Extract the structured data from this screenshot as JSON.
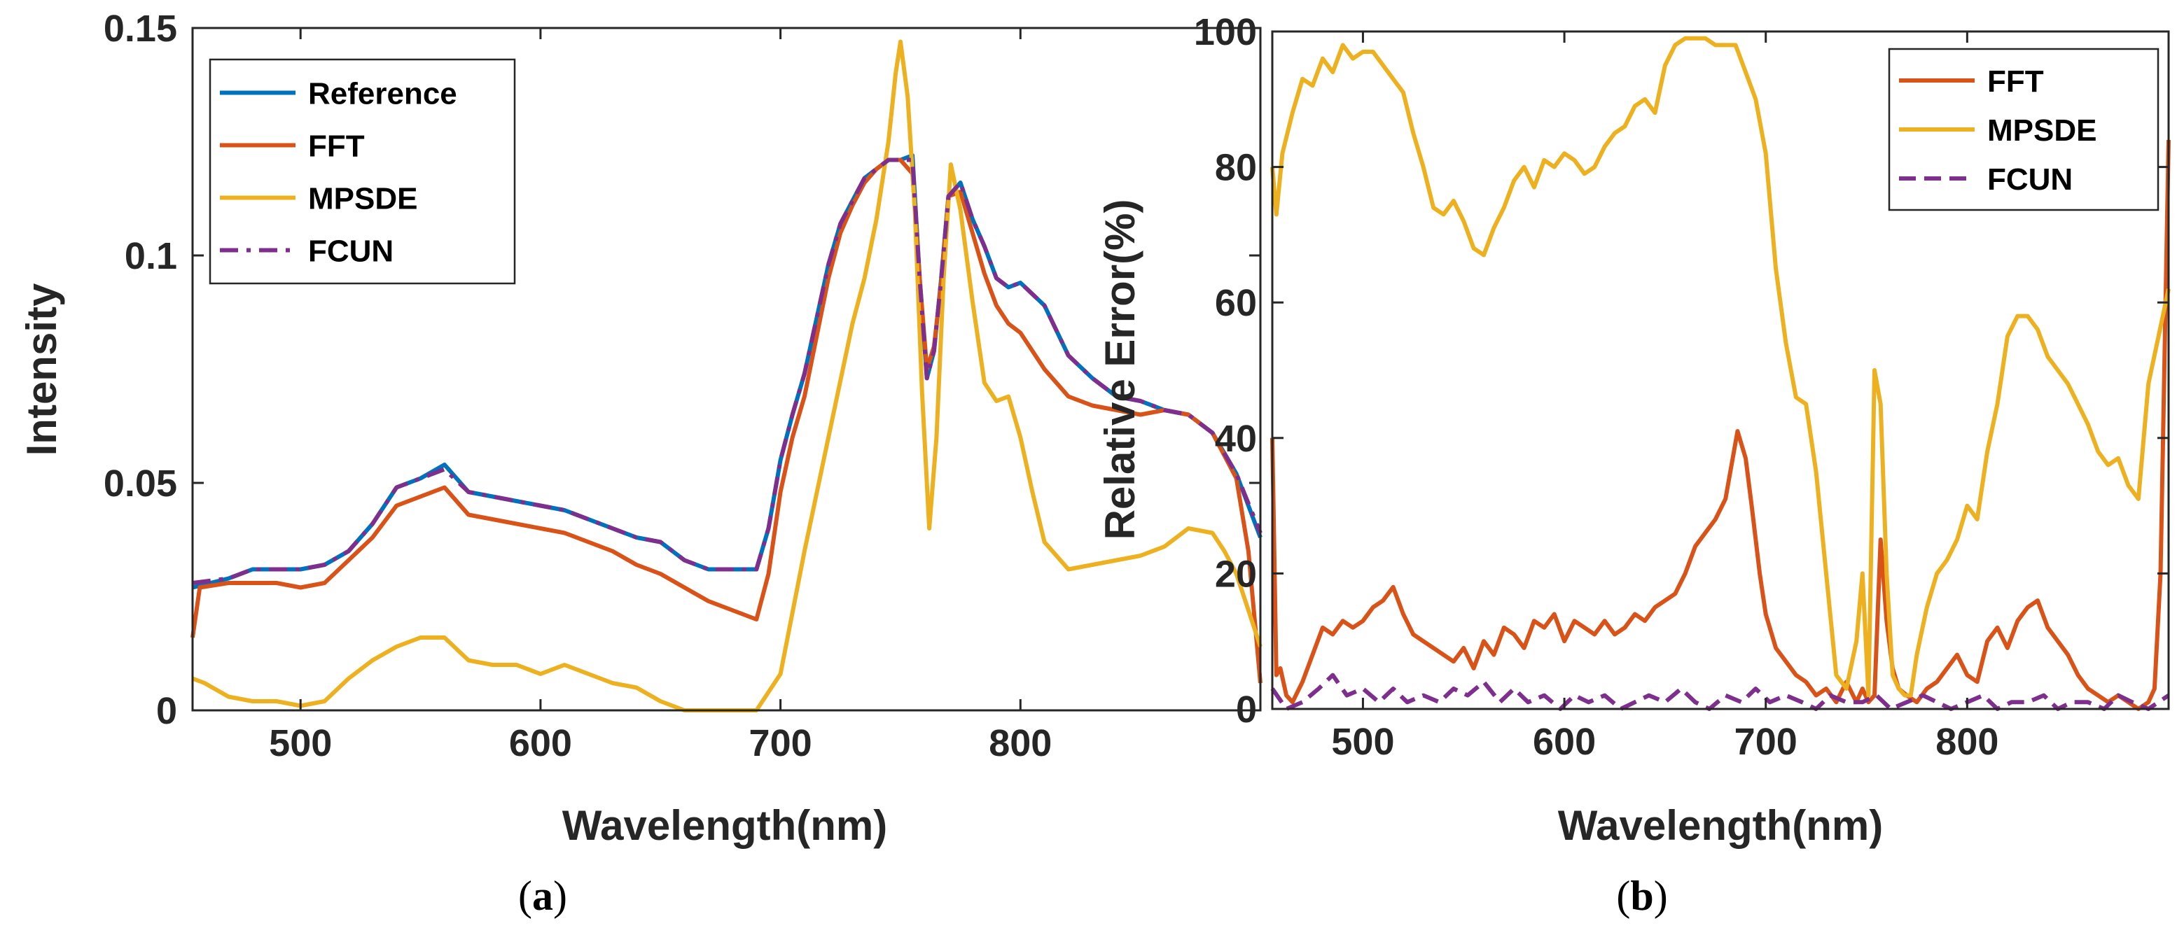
{
  "figure": {
    "caption_a": {
      "open": "(",
      "letter": "a",
      "close": ")"
    },
    "caption_b": {
      "open": "(",
      "letter": "b",
      "close": ")"
    }
  },
  "colors": {
    "Reference": "#0072BD",
    "FFT": "#D95319",
    "MPSDE": "#EDB120",
    "FCUN": "#7E2F8E",
    "axis": "#262626"
  },
  "chart_data": [
    {
      "id": "a",
      "type": "line",
      "title": "",
      "xlabel": "Wavelength(nm)",
      "ylabel": "Intensity",
      "xlim": [
        455,
        900
      ],
      "ylim": [
        0,
        0.15
      ],
      "xticks": [
        500,
        600,
        700,
        800
      ],
      "yticks": [
        0,
        0.05,
        0.1,
        0.15
      ],
      "ytick_labels": [
        "0",
        "0.05",
        "0.1",
        "0.15"
      ],
      "legend_position": "top-left",
      "series": [
        {
          "name": "Reference",
          "style": "solid",
          "x": [
            455,
            470,
            480,
            490,
            500,
            510,
            520,
            530,
            540,
            550,
            560,
            570,
            580,
            590,
            600,
            610,
            620,
            630,
            640,
            650,
            660,
            670,
            680,
            690,
            695,
            700,
            705,
            710,
            715,
            720,
            725,
            730,
            735,
            740,
            745,
            750,
            755,
            758,
            761,
            764,
            767,
            770,
            775,
            780,
            785,
            790,
            795,
            800,
            810,
            820,
            830,
            840,
            850,
            860,
            870,
            880,
            890,
            900
          ],
          "y": [
            0.027,
            0.029,
            0.031,
            0.031,
            0.031,
            0.032,
            0.035,
            0.041,
            0.049,
            0.051,
            0.054,
            0.048,
            0.047,
            0.046,
            0.045,
            0.044,
            0.042,
            0.04,
            0.038,
            0.037,
            0.033,
            0.031,
            0.031,
            0.031,
            0.04,
            0.055,
            0.065,
            0.074,
            0.086,
            0.098,
            0.107,
            0.112,
            0.117,
            0.119,
            0.121,
            0.121,
            0.122,
            0.095,
            0.073,
            0.079,
            0.095,
            0.113,
            0.116,
            0.108,
            0.102,
            0.095,
            0.093,
            0.094,
            0.089,
            0.078,
            0.073,
            0.069,
            0.068,
            0.066,
            0.065,
            0.061,
            0.052,
            0.038
          ]
        },
        {
          "name": "FFT",
          "style": "solid",
          "x": [
            455,
            458,
            470,
            480,
            490,
            500,
            510,
            520,
            530,
            540,
            550,
            560,
            570,
            580,
            590,
            600,
            610,
            620,
            630,
            640,
            650,
            660,
            670,
            680,
            690,
            695,
            700,
            705,
            710,
            715,
            720,
            725,
            730,
            735,
            740,
            745,
            750,
            755,
            758,
            761,
            764,
            767,
            770,
            775,
            780,
            785,
            790,
            795,
            800,
            810,
            820,
            830,
            840,
            850,
            860,
            870,
            880,
            890,
            895,
            900
          ],
          "y": [
            0.016,
            0.027,
            0.028,
            0.028,
            0.028,
            0.027,
            0.028,
            0.033,
            0.038,
            0.045,
            0.047,
            0.049,
            0.043,
            0.042,
            0.041,
            0.04,
            0.039,
            0.037,
            0.035,
            0.032,
            0.03,
            0.027,
            0.024,
            0.022,
            0.02,
            0.03,
            0.048,
            0.06,
            0.069,
            0.082,
            0.095,
            0.105,
            0.111,
            0.116,
            0.119,
            0.121,
            0.121,
            0.118,
            0.095,
            0.075,
            0.08,
            0.094,
            0.113,
            0.114,
            0.105,
            0.096,
            0.089,
            0.085,
            0.083,
            0.075,
            0.069,
            0.067,
            0.066,
            0.065,
            0.066,
            0.065,
            0.061,
            0.051,
            0.035,
            0.006
          ]
        },
        {
          "name": "MPSDE",
          "style": "solid",
          "x": [
            455,
            460,
            470,
            480,
            490,
            500,
            510,
            520,
            530,
            540,
            550,
            560,
            570,
            580,
            590,
            600,
            610,
            620,
            630,
            640,
            650,
            660,
            670,
            680,
            690,
            700,
            710,
            720,
            730,
            735,
            740,
            745,
            748,
            750,
            753,
            756,
            759,
            762,
            765,
            768,
            771,
            775,
            780,
            785,
            790,
            795,
            800,
            805,
            810,
            820,
            830,
            840,
            850,
            860,
            870,
            880,
            885,
            890,
            895,
            900
          ],
          "y": [
            0.007,
            0.006,
            0.003,
            0.002,
            0.002,
            0.001,
            0.002,
            0.007,
            0.011,
            0.014,
            0.016,
            0.016,
            0.011,
            0.01,
            0.01,
            0.008,
            0.01,
            0.008,
            0.006,
            0.005,
            0.002,
            0.0,
            0.0,
            0.0,
            0.0,
            0.008,
            0.035,
            0.06,
            0.085,
            0.095,
            0.108,
            0.125,
            0.14,
            0.147,
            0.135,
            0.11,
            0.07,
            0.04,
            0.06,
            0.095,
            0.12,
            0.11,
            0.09,
            0.072,
            0.068,
            0.069,
            0.06,
            0.048,
            0.037,
            0.031,
            0.032,
            0.033,
            0.034,
            0.036,
            0.04,
            0.039,
            0.035,
            0.03,
            0.022,
            0.014
          ]
        },
        {
          "name": "FCUN",
          "style": "dashdot",
          "x": [
            455,
            470,
            480,
            490,
            500,
            510,
            520,
            530,
            540,
            550,
            560,
            570,
            580,
            590,
            600,
            610,
            620,
            630,
            640,
            650,
            660,
            670,
            680,
            690,
            695,
            700,
            705,
            710,
            715,
            720,
            725,
            730,
            735,
            740,
            745,
            750,
            755,
            758,
            761,
            764,
            767,
            770,
            775,
            780,
            785,
            790,
            795,
            800,
            810,
            820,
            830,
            840,
            850,
            860,
            870,
            880,
            890,
            900
          ],
          "y": [
            0.028,
            0.029,
            0.031,
            0.031,
            0.031,
            0.032,
            0.035,
            0.041,
            0.049,
            0.051,
            0.053,
            0.048,
            0.047,
            0.046,
            0.045,
            0.044,
            0.042,
            0.04,
            0.038,
            0.037,
            0.033,
            0.031,
            0.031,
            0.031,
            0.04,
            0.055,
            0.065,
            0.074,
            0.086,
            0.098,
            0.107,
            0.112,
            0.117,
            0.119,
            0.121,
            0.121,
            0.121,
            0.095,
            0.073,
            0.079,
            0.095,
            0.113,
            0.116,
            0.108,
            0.102,
            0.095,
            0.093,
            0.094,
            0.089,
            0.078,
            0.073,
            0.069,
            0.068,
            0.066,
            0.065,
            0.061,
            0.052,
            0.039
          ]
        }
      ]
    },
    {
      "id": "b",
      "type": "line",
      "title": "",
      "xlabel": "Wavelength(nm)",
      "ylabel": "Relative Error(%)",
      "xlim": [
        455,
        900
      ],
      "ylim": [
        0,
        100
      ],
      "xticks": [
        500,
        600,
        700,
        800
      ],
      "yticks": [
        0,
        20,
        40,
        60,
        80,
        100
      ],
      "ytick_labels": [
        "0",
        "20",
        "40",
        "60",
        "80",
        "100"
      ],
      "legend_position": "top-right",
      "series": [
        {
          "name": "FFT",
          "style": "solid",
          "x": [
            455,
            457,
            459,
            462,
            465,
            470,
            475,
            480,
            485,
            490,
            495,
            500,
            505,
            510,
            515,
            520,
            525,
            530,
            535,
            540,
            545,
            550,
            555,
            560,
            565,
            570,
            575,
            580,
            585,
            590,
            595,
            600,
            605,
            610,
            615,
            620,
            625,
            630,
            635,
            640,
            645,
            650,
            655,
            660,
            665,
            670,
            675,
            680,
            683,
            686,
            690,
            693,
            697,
            700,
            705,
            710,
            715,
            720,
            725,
            730,
            735,
            740,
            745,
            748,
            751,
            754,
            757,
            760,
            763,
            766,
            770,
            775,
            780,
            785,
            790,
            795,
            800,
            805,
            810,
            815,
            820,
            825,
            830,
            835,
            840,
            845,
            850,
            855,
            860,
            865,
            870,
            875,
            880,
            885,
            890,
            893,
            896,
            900
          ],
          "y": [
            40,
            5,
            6,
            2,
            1,
            4,
            8,
            12,
            11,
            13,
            12,
            13,
            15,
            16,
            18,
            14,
            11,
            10,
            9,
            8,
            7,
            9,
            6,
            10,
            8,
            12,
            11,
            9,
            13,
            12,
            14,
            10,
            13,
            12,
            11,
            13,
            11,
            12,
            14,
            13,
            15,
            16,
            17,
            20,
            24,
            26,
            28,
            31,
            36,
            41,
            37,
            30,
            20,
            14,
            9,
            7,
            5,
            4,
            2,
            3,
            1,
            4,
            1,
            3,
            1,
            2,
            25,
            13,
            6,
            3,
            2,
            1,
            3,
            4,
            6,
            8,
            5,
            4,
            10,
            12,
            9,
            13,
            15,
            16,
            12,
            10,
            8,
            5,
            3,
            2,
            1,
            2,
            1,
            0,
            1,
            3,
            20,
            84
          ]
        },
        {
          "name": "MPSDE",
          "style": "solid",
          "x": [
            455,
            457,
            460,
            465,
            470,
            475,
            480,
            485,
            490,
            495,
            500,
            505,
            510,
            515,
            520,
            525,
            530,
            535,
            540,
            545,
            550,
            555,
            560,
            565,
            570,
            575,
            580,
            585,
            590,
            595,
            600,
            605,
            610,
            615,
            620,
            625,
            630,
            635,
            640,
            645,
            650,
            655,
            660,
            665,
            670,
            675,
            680,
            685,
            690,
            695,
            700,
            705,
            710,
            715,
            720,
            725,
            730,
            735,
            740,
            745,
            748,
            751,
            754,
            757,
            760,
            763,
            766,
            769,
            772,
            775,
            780,
            785,
            790,
            795,
            800,
            805,
            810,
            815,
            820,
            825,
            830,
            835,
            840,
            845,
            850,
            855,
            860,
            865,
            870,
            875,
            880,
            885,
            890,
            895,
            900
          ],
          "y": [
            80,
            73,
            82,
            88,
            93,
            92,
            96,
            94,
            98,
            96,
            97,
            97,
            95,
            93,
            91,
            85,
            80,
            74,
            73,
            75,
            72,
            68,
            67,
            71,
            74,
            78,
            80,
            77,
            81,
            80,
            82,
            81,
            79,
            80,
            83,
            85,
            86,
            89,
            90,
            88,
            95,
            98,
            99,
            99,
            99,
            98,
            98,
            98,
            94,
            90,
            82,
            65,
            54,
            46,
            45,
            35,
            20,
            5,
            3,
            10,
            20,
            2,
            50,
            45,
            20,
            5,
            3,
            2,
            2,
            8,
            15,
            20,
            22,
            25,
            30,
            28,
            38,
            45,
            55,
            58,
            58,
            56,
            52,
            50,
            48,
            45,
            42,
            38,
            36,
            37,
            33,
            31,
            48,
            55,
            62
          ]
        },
        {
          "name": "FCUN",
          "style": "dashed",
          "x": [
            455,
            462,
            470,
            478,
            485,
            492,
            500,
            508,
            515,
            522,
            530,
            538,
            545,
            552,
            560,
            568,
            575,
            582,
            590,
            598,
            605,
            612,
            620,
            628,
            635,
            642,
            650,
            658,
            665,
            672,
            680,
            688,
            695,
            702,
            710,
            718,
            725,
            732,
            740,
            748,
            755,
            762,
            770,
            778,
            785,
            792,
            800,
            808,
            815,
            822,
            830,
            838,
            845,
            852,
            860,
            868,
            875,
            882,
            890,
            900
          ],
          "y": [
            3,
            0,
            1,
            3,
            5,
            2,
            3,
            1,
            3,
            1,
            2,
            1,
            3,
            2,
            4,
            1,
            3,
            1,
            2,
            0,
            2,
            1,
            2,
            0,
            1,
            2,
            1,
            3,
            1,
            0,
            2,
            1,
            3,
            1,
            2,
            1,
            0,
            2,
            1,
            1,
            2,
            0,
            1,
            2,
            1,
            0,
            1,
            2,
            0,
            1,
            1,
            2,
            0,
            1,
            1,
            0,
            2,
            1,
            0,
            2
          ]
        }
      ]
    }
  ]
}
